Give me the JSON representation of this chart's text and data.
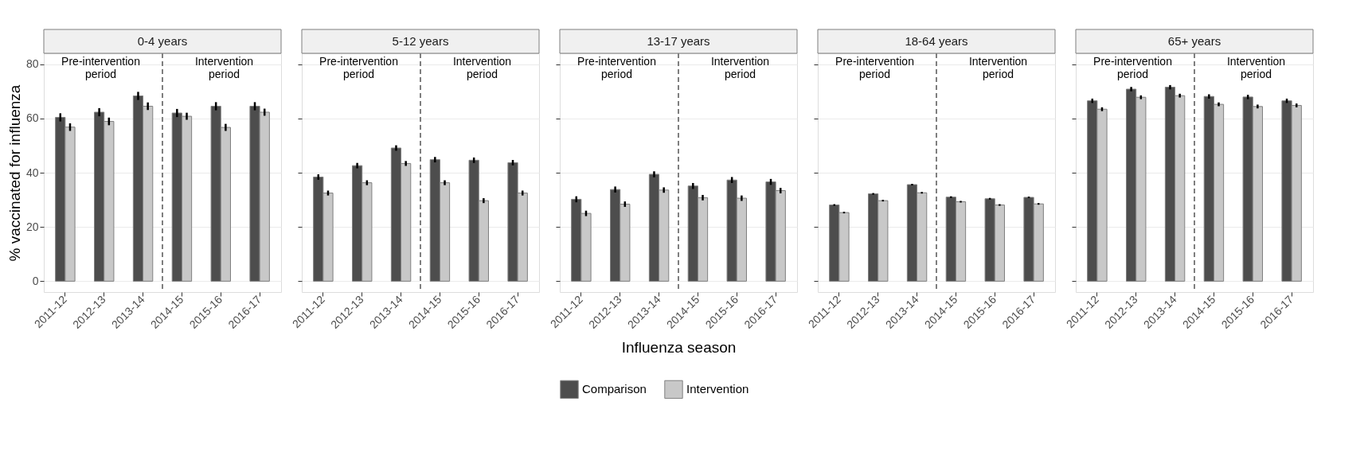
{
  "chart_data": [
    {
      "type": "bar",
      "title": "0-4 years",
      "ylabel": "% vaccinated for influenza",
      "categories": [
        "2011-12",
        "2012-13",
        "2013-14",
        "2014-15",
        "2015-16",
        "2016-17"
      ],
      "ylim": [
        -4,
        84
      ],
      "yticks": [
        0,
        20,
        40,
        60,
        80
      ],
      "grid": "y",
      "legend": false,
      "series": [
        {
          "color": "#4d4d4d",
          "values": [
            60.4,
            62.3,
            68.3,
            62.0,
            64.5,
            64.5
          ],
          "errors": [
            1.5,
            1.5,
            1.5,
            1.5,
            1.5,
            1.5
          ]
        },
        {
          "color": "#c8c8c8",
          "values": [
            56.8,
            58.9,
            64.5,
            60.8,
            56.7,
            62.3
          ],
          "errors": [
            1.4,
            1.4,
            1.4,
            1.3,
            1.3,
            1.3
          ]
        }
      ],
      "ref_lines": [
        {
          "axis": "x",
          "value": "2014-15",
          "line_style": "dashed",
          "color": "#7f7f7f"
        }
      ],
      "annotations": [
        "Pre-intervention period",
        "Intervention period"
      ]
    },
    {
      "type": "bar",
      "title": "5-12 years",
      "categories": [
        "2011-12",
        "2012-13",
        "2013-14",
        "2014-15",
        "2015-16",
        "2016-17"
      ],
      "ylim": [
        -4,
        84
      ],
      "yticks": [
        0,
        20,
        40,
        60,
        80
      ],
      "grid": "y",
      "legend": false,
      "tick_labels": "x",
      "series": [
        {
          "color": "#4d4d4d",
          "values": [
            38.4,
            42.6,
            49.1,
            44.8,
            44.6,
            43.7
          ],
          "errors": [
            1.0,
            1.0,
            1.0,
            1.0,
            1.0,
            1.0
          ]
        },
        {
          "color": "#c8c8c8",
          "values": [
            32.5,
            36.3,
            43.4,
            36.3,
            29.7,
            32.5
          ],
          "errors": [
            0.9,
            0.9,
            0.9,
            0.9,
            0.9,
            0.9
          ]
        }
      ],
      "ref_lines": [
        {
          "axis": "x",
          "value": "2014-15",
          "line_style": "dashed",
          "color": "#7f7f7f"
        }
      ],
      "annotations": [
        "Pre-intervention period",
        "Intervention period"
      ]
    },
    {
      "type": "bar",
      "title": "13-17 years",
      "xlabel": "Influenza season",
      "categories": [
        "2011-12",
        "2012-13",
        "2013-14",
        "2014-15",
        "2015-16",
        "2016-17"
      ],
      "ylim": [
        -4,
        84
      ],
      "yticks": [
        0,
        20,
        40,
        60,
        80
      ],
      "grid": "y",
      "legend": "bottom",
      "tick_labels": "x",
      "series": [
        {
          "name": "Comparison",
          "color": "#4d4d4d",
          "values": [
            30.2,
            33.8,
            39.4,
            35.1,
            37.3,
            36.6
          ],
          "errors": [
            1.1,
            1.1,
            1.1,
            1.1,
            1.1,
            1.1
          ]
        },
        {
          "name": "Intervention",
          "color": "#c8c8c8",
          "values": [
            25.0,
            28.4,
            33.6,
            30.8,
            30.6,
            33.4
          ],
          "errors": [
            1.0,
            1.0,
            1.0,
            1.0,
            1.0,
            1.0
          ]
        }
      ],
      "ref_lines": [
        {
          "axis": "x",
          "value": "2014-15",
          "line_style": "dashed",
          "color": "#7f7f7f"
        }
      ],
      "annotations": [
        "Pre-intervention period",
        "Intervention period"
      ]
    },
    {
      "type": "bar",
      "title": "18-64 years",
      "categories": [
        "2011-12",
        "2012-13",
        "2013-14",
        "2014-15",
        "2015-16",
        "2016-17"
      ],
      "ylim": [
        -4,
        84
      ],
      "yticks": [
        0,
        20,
        40,
        60,
        80
      ],
      "grid": "y",
      "legend": false,
      "tick_labels": "x",
      "series": [
        {
          "color": "#4d4d4d",
          "values": [
            28.1,
            32.2,
            35.6,
            31.0,
            30.4,
            30.9
          ],
          "errors": [
            0.3,
            0.3,
            0.3,
            0.3,
            0.3,
            0.3
          ]
        },
        {
          "color": "#c8c8c8",
          "values": [
            25.3,
            29.7,
            32.6,
            29.3,
            28.1,
            28.5
          ],
          "errors": [
            0.3,
            0.3,
            0.3,
            0.3,
            0.3,
            0.3
          ]
        }
      ],
      "ref_lines": [
        {
          "axis": "x",
          "value": "2014-15",
          "line_style": "dashed",
          "color": "#7f7f7f"
        }
      ],
      "annotations": [
        "Pre-intervention period",
        "Intervention period"
      ]
    },
    {
      "type": "bar",
      "title": "65+ years",
      "categories": [
        "2011-12",
        "2012-13",
        "2013-14",
        "2014-15",
        "2015-16",
        "2016-17"
      ],
      "ylim": [
        -4,
        84
      ],
      "yticks": [
        0,
        20,
        40,
        60,
        80
      ],
      "grid": "y",
      "legend": false,
      "tick_labels": "x",
      "series": [
        {
          "color": "#4d4d4d",
          "values": [
            66.5,
            70.8,
            71.5,
            68.1,
            67.9,
            66.5
          ],
          "errors": [
            0.8,
            0.8,
            0.8,
            0.8,
            0.8,
            0.8
          ]
        },
        {
          "color": "#c8c8c8",
          "values": [
            63.4,
            67.8,
            68.4,
            65.2,
            64.4,
            64.8
          ],
          "errors": [
            0.7,
            0.7,
            0.7,
            0.7,
            0.7,
            0.7
          ]
        }
      ],
      "ref_lines": [
        {
          "axis": "x",
          "value": "2014-15",
          "line_style": "dashed",
          "color": "#7f7f7f"
        }
      ],
      "annotations": [
        "Pre-intervention period",
        "Intervention period"
      ]
    }
  ]
}
